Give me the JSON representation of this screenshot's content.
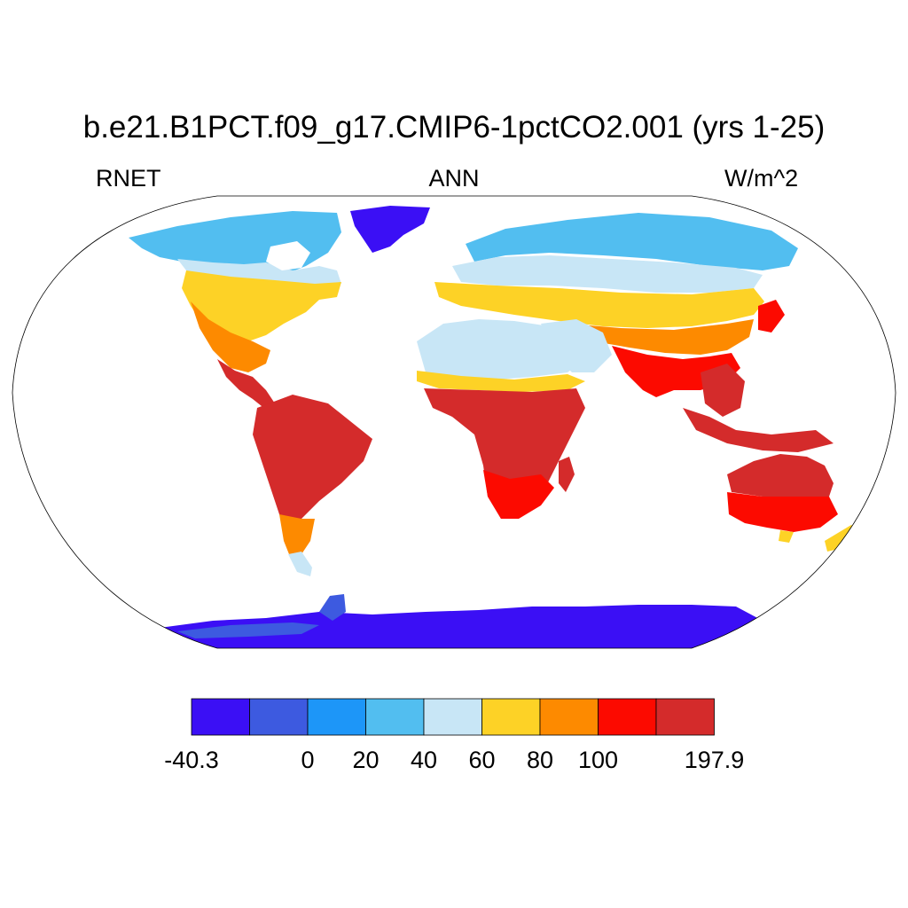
{
  "title": "b.e21.B1PCT.f09_g17.CMIP6-1pctCO2.001 (yrs 1-25)",
  "left_label": "RNET",
  "center_label": "ANN",
  "right_label": "W/m^2",
  "colorbar": {
    "colors": [
      "#3b0ff5",
      "#3d5ae0",
      "#1d96f8",
      "#52bef0",
      "#c8e6f6",
      "#fdd226",
      "#fd8a00",
      "#fc0a00",
      "#d42b2b"
    ],
    "tick_labels": [
      "-40.3",
      "0",
      "20",
      "40",
      "60",
      "80",
      "100",
      "197.9"
    ]
  }
}
